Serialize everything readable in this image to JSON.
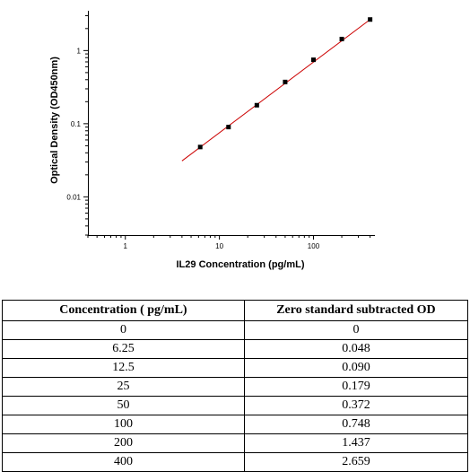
{
  "chart_data": {
    "type": "scatter",
    "title": "",
    "xlabel": "IL29 Concentration (pg/mL)",
    "ylabel": "Optical Density (OD450nm)",
    "xscale": "log",
    "yscale": "log",
    "xlim": [
      0.4,
      450
    ],
    "ylim": [
      0.003,
      3.5
    ],
    "x_ticks": [
      1,
      10,
      100
    ],
    "x_tick_labels": [
      "1",
      "10",
      "100"
    ],
    "y_ticks": [
      0.01,
      0.1,
      1
    ],
    "y_tick_labels": [
      "0.01",
      "0.1",
      "1"
    ],
    "grid": false,
    "legend": "none",
    "points": [
      {
        "x": 6.25,
        "y": 0.048
      },
      {
        "x": 12.5,
        "y": 0.09
      },
      {
        "x": 25,
        "y": 0.179
      },
      {
        "x": 50,
        "y": 0.372
      },
      {
        "x": 100,
        "y": 0.748
      },
      {
        "x": 200,
        "y": 1.437
      },
      {
        "x": 400,
        "y": 2.659
      }
    ],
    "fit_line": {
      "x": [
        4,
        400
      ],
      "y": [
        0.031,
        2.66
      ],
      "color": "#cc0000"
    },
    "marker_color": "#000000"
  },
  "table": {
    "headers": [
      "Concentration ( pg/mL)",
      "Zero standard subtracted OD"
    ],
    "rows": [
      [
        "0",
        "0"
      ],
      [
        "6.25",
        "0.048"
      ],
      [
        "12.5",
        "0.090"
      ],
      [
        "25",
        "0.179"
      ],
      [
        "50",
        "0.372"
      ],
      [
        "100",
        "0.748"
      ],
      [
        "200",
        "1.437"
      ],
      [
        "400",
        "2.659"
      ]
    ]
  }
}
